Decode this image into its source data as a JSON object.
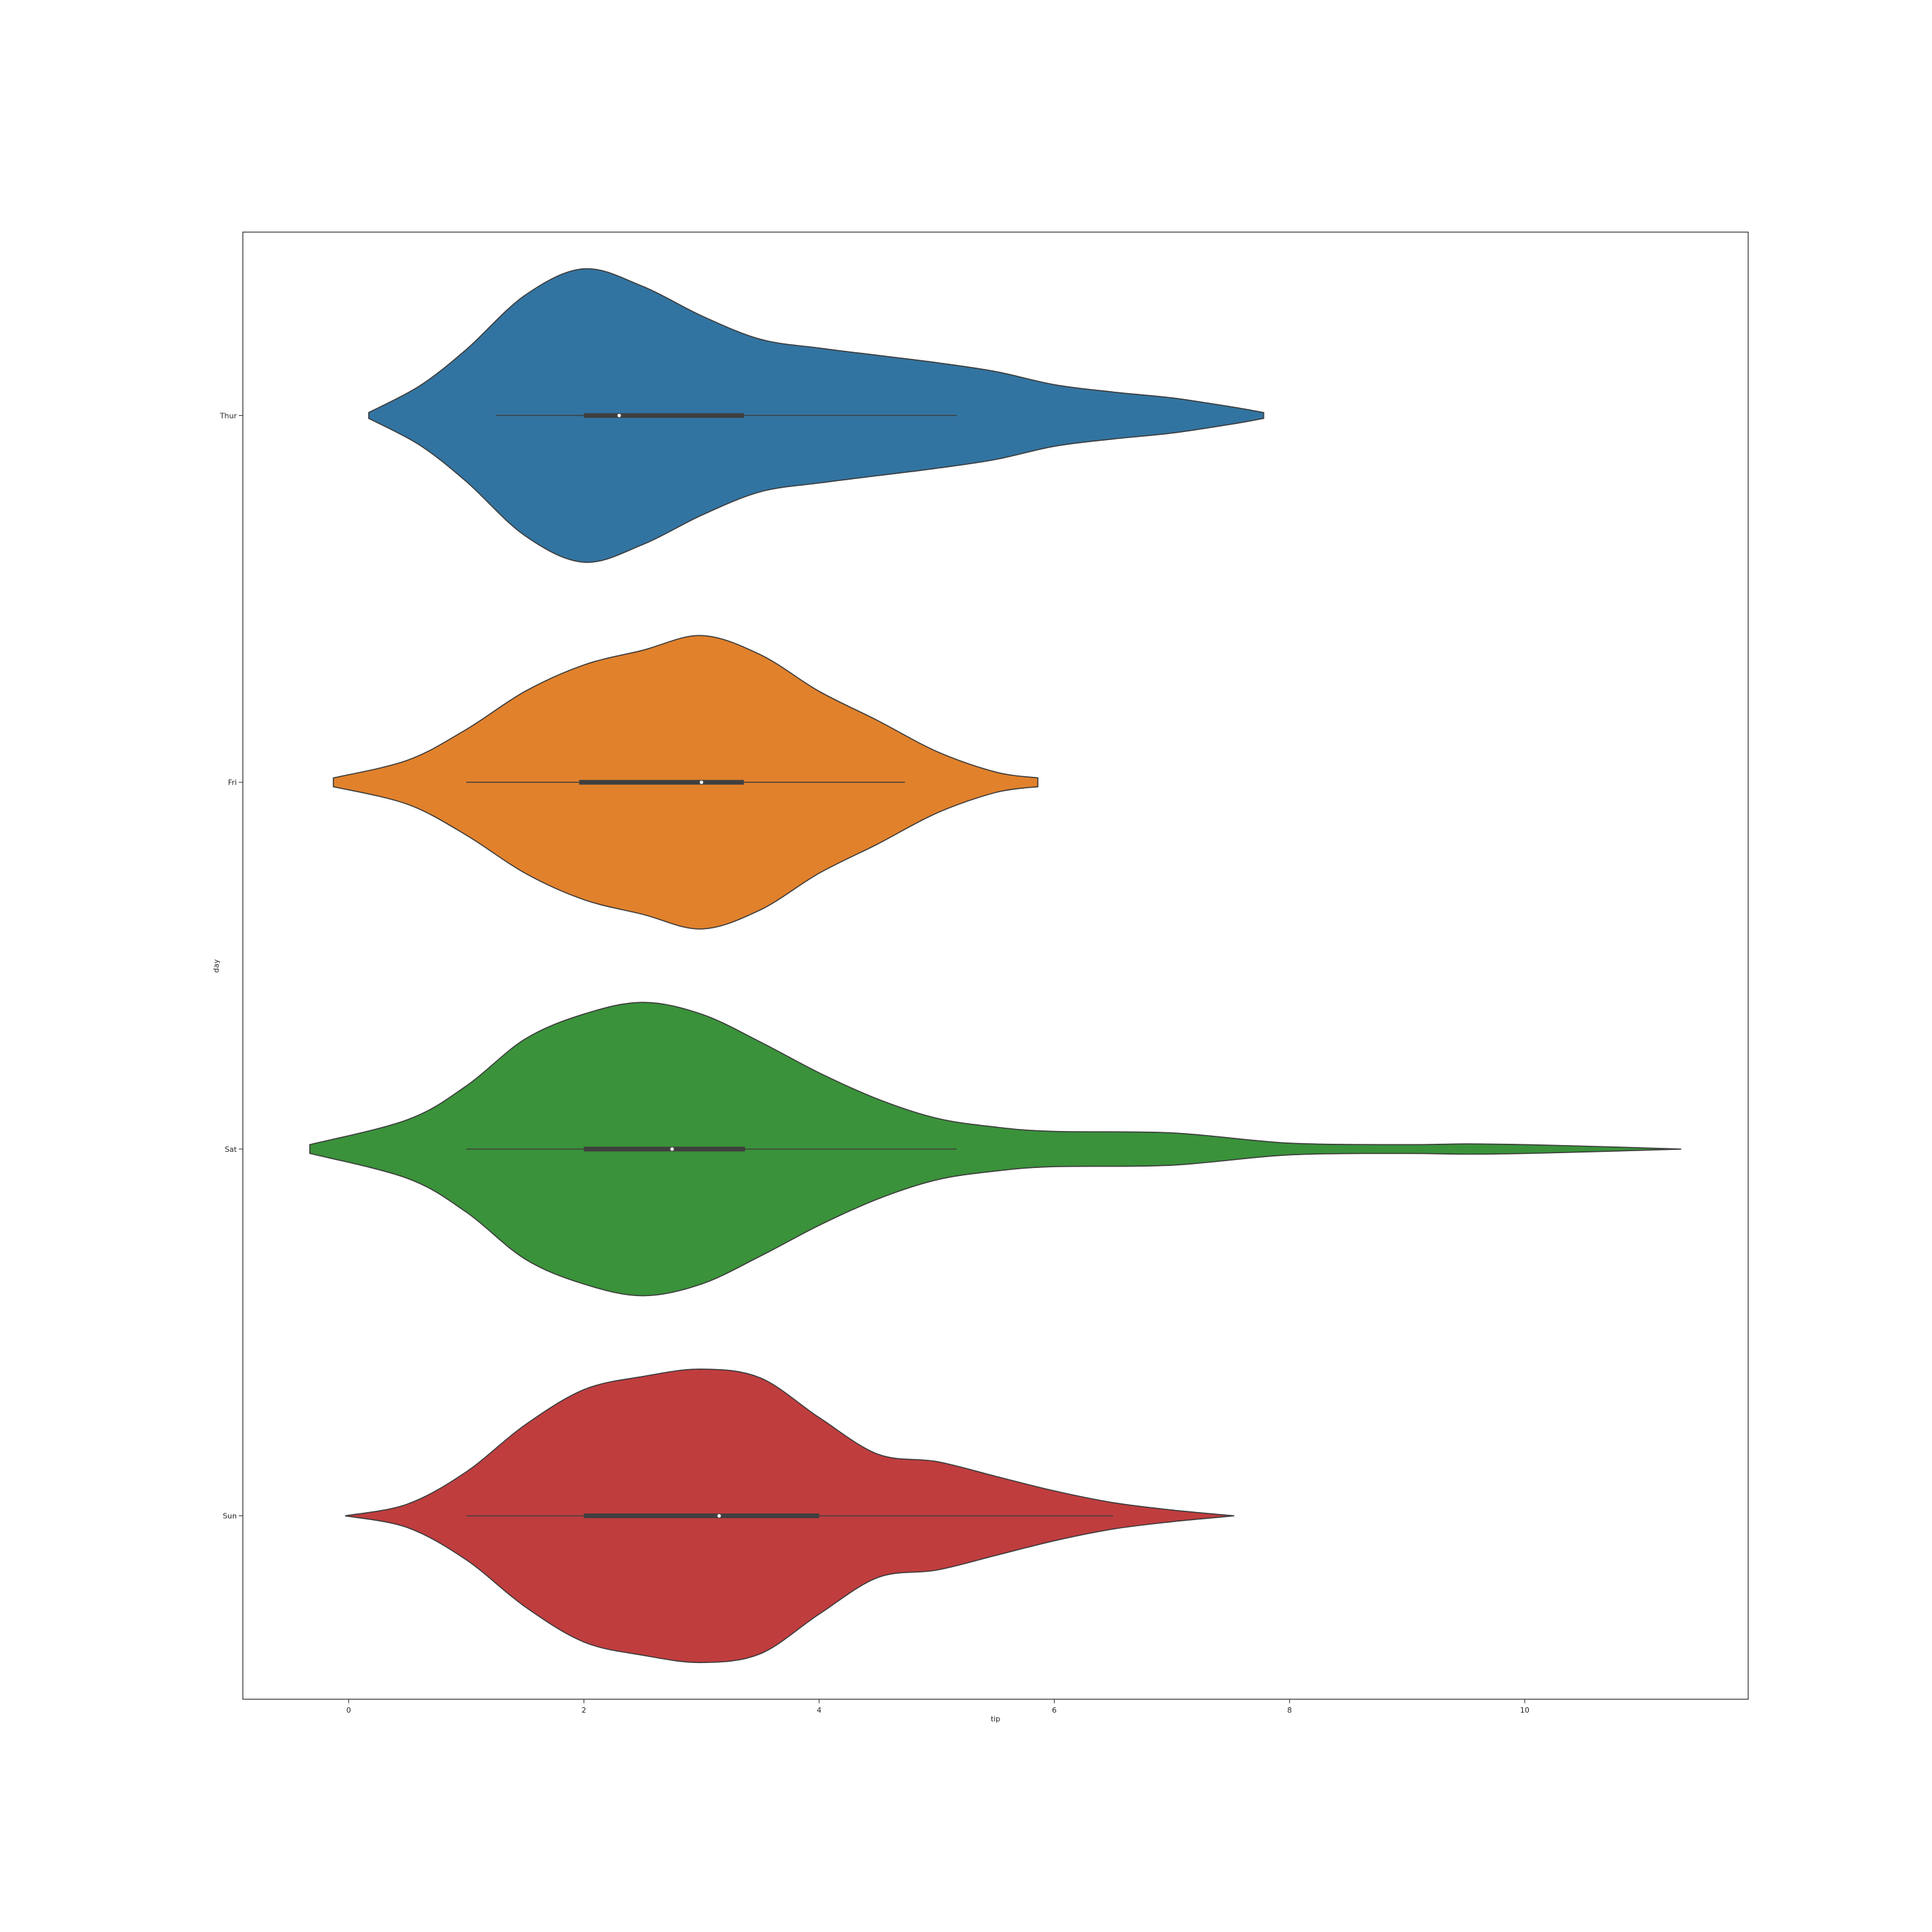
{
  "chart_data": {
    "type": "violin",
    "orientation": "horizontal",
    "title": "",
    "xlabel": "tip",
    "ylabel": "day",
    "xlim": [
      -0.9,
      11.9
    ],
    "xticks": [
      0,
      2,
      4,
      6,
      8,
      10
    ],
    "categories": [
      "Thur",
      "Fri",
      "Sat",
      "Sun"
    ],
    "grid": false,
    "violins": [
      {
        "category": "Thur",
        "color": "#3274a1",
        "range": [
          0.17,
          7.78
        ],
        "box": {
          "whisker_low": 1.25,
          "q1": 2.0,
          "median": 2.3,
          "q3": 3.36,
          "whisker_high": 5.17
        },
        "density": [
          [
            0.17,
            0.02
          ],
          [
            0.6,
            0.2
          ],
          [
            1.0,
            0.45
          ],
          [
            1.5,
            0.82
          ],
          [
            2.0,
            1.0
          ],
          [
            2.5,
            0.88
          ],
          [
            3.0,
            0.68
          ],
          [
            3.5,
            0.52
          ],
          [
            4.0,
            0.46
          ],
          [
            4.5,
            0.41
          ],
          [
            5.0,
            0.36
          ],
          [
            5.5,
            0.3
          ],
          [
            6.0,
            0.21
          ],
          [
            6.5,
            0.16
          ],
          [
            7.0,
            0.12
          ],
          [
            7.5,
            0.06
          ],
          [
            7.78,
            0.02
          ]
        ]
      },
      {
        "category": "Fri",
        "color": "#e1812c",
        "range": [
          -0.13,
          5.86
        ],
        "box": {
          "whisker_low": 1.0,
          "q1": 1.96,
          "median": 3.0,
          "q3": 3.36,
          "whisker_high": 4.73
        },
        "density": [
          [
            -0.13,
            0.03
          ],
          [
            0.5,
            0.15
          ],
          [
            1.0,
            0.36
          ],
          [
            1.5,
            0.62
          ],
          [
            2.0,
            0.8
          ],
          [
            2.5,
            0.9
          ],
          [
            3.0,
            1.0
          ],
          [
            3.5,
            0.87
          ],
          [
            4.0,
            0.62
          ],
          [
            4.5,
            0.42
          ],
          [
            5.0,
            0.21
          ],
          [
            5.5,
            0.07
          ],
          [
            5.86,
            0.03
          ]
        ]
      },
      {
        "category": "Sat",
        "color": "#3a923a",
        "range": [
          -0.33,
          11.33
        ],
        "box": {
          "whisker_low": 1.0,
          "q1": 2.0,
          "median": 2.75,
          "q3": 3.37,
          "whisker_high": 5.17
        },
        "density": [
          [
            -0.33,
            0.03
          ],
          [
            0.5,
            0.2
          ],
          [
            1.0,
            0.43
          ],
          [
            1.5,
            0.75
          ],
          [
            2.0,
            0.92
          ],
          [
            2.5,
            1.0
          ],
          [
            3.0,
            0.92
          ],
          [
            3.5,
            0.73
          ],
          [
            4.0,
            0.52
          ],
          [
            4.5,
            0.34
          ],
          [
            5.0,
            0.21
          ],
          [
            5.5,
            0.15
          ],
          [
            6.0,
            0.12
          ],
          [
            7.0,
            0.11
          ],
          [
            8.0,
            0.04
          ],
          [
            9.0,
            0.03
          ],
          [
            9.5,
            0.035
          ],
          [
            10.0,
            0.03
          ],
          [
            10.5,
            0.02
          ],
          [
            11.33,
            0.0
          ]
        ]
      },
      {
        "category": "Sun",
        "color": "#c03d3e",
        "range": [
          -0.03,
          7.53
        ],
        "box": {
          "whisker_low": 1.0,
          "q1": 2.0,
          "median": 3.15,
          "q3": 4.0,
          "whisker_high": 6.5
        },
        "density": [
          [
            -0.03,
            0.0
          ],
          [
            0.5,
            0.08
          ],
          [
            1.0,
            0.3
          ],
          [
            1.5,
            0.62
          ],
          [
            2.0,
            0.86
          ],
          [
            2.5,
            0.95
          ],
          [
            3.0,
            1.0
          ],
          [
            3.5,
            0.94
          ],
          [
            4.0,
            0.67
          ],
          [
            4.5,
            0.42
          ],
          [
            5.0,
            0.37
          ],
          [
            5.5,
            0.27
          ],
          [
            6.0,
            0.17
          ],
          [
            6.5,
            0.09
          ],
          [
            7.0,
            0.04
          ],
          [
            7.53,
            0.0
          ]
        ]
      }
    ]
  }
}
